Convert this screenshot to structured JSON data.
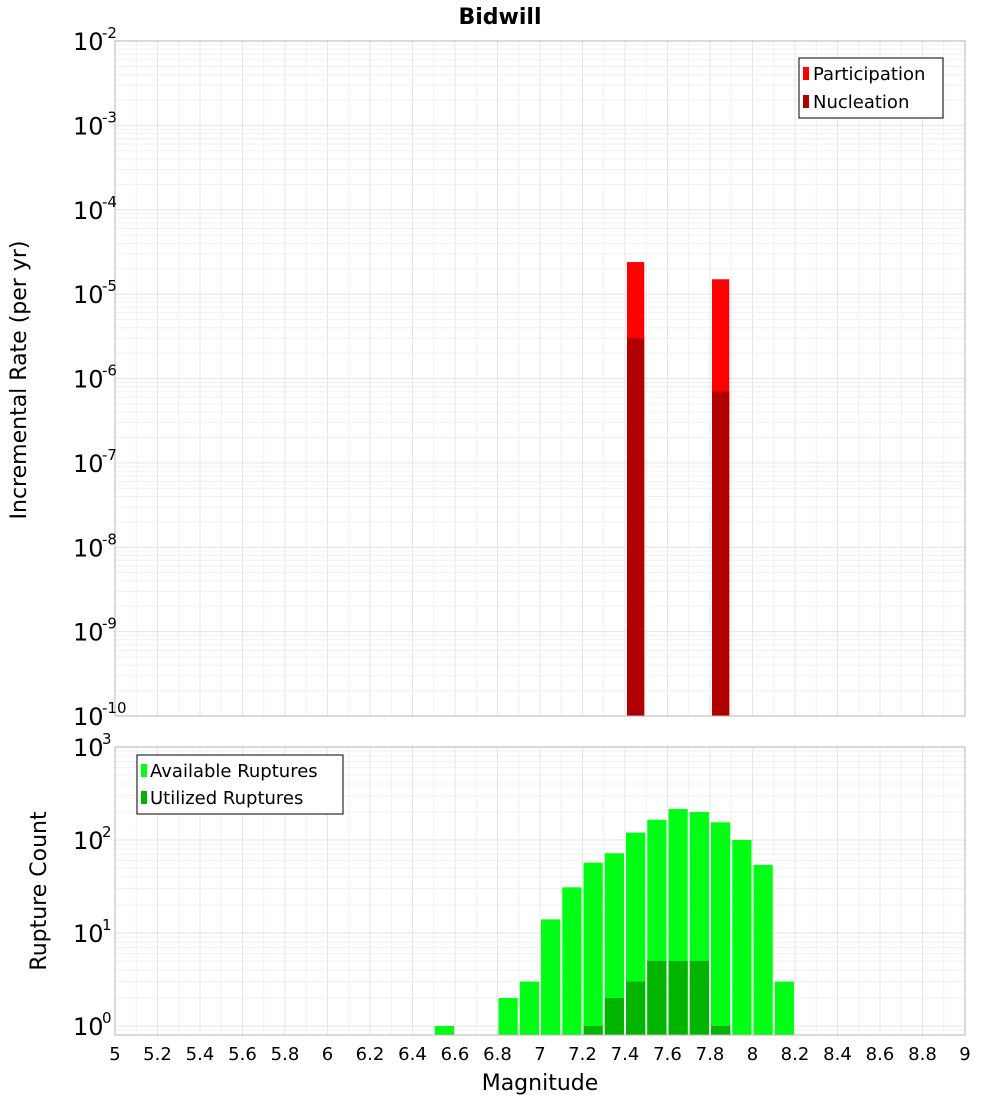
{
  "chart_data": [
    {
      "type": "bar",
      "title": "Bidwill",
      "ylabel": "Incremental Rate (per yr)",
      "xlabel": "",
      "yscale": "log",
      "ylim": [
        1e-10,
        0.01
      ],
      "xlim": [
        5,
        9
      ],
      "grid": true,
      "legend_position": "top-right",
      "y_ticks": [
        {
          "base": "10",
          "exp": "-10",
          "value": 1e-10
        },
        {
          "base": "10",
          "exp": "-9",
          "value": 1e-09
        },
        {
          "base": "10",
          "exp": "-8",
          "value": 1e-08
        },
        {
          "base": "10",
          "exp": "-7",
          "value": 1e-07
        },
        {
          "base": "10",
          "exp": "-6",
          "value": 1e-06
        },
        {
          "base": "10",
          "exp": "-5",
          "value": 1e-05
        },
        {
          "base": "10",
          "exp": "-4",
          "value": 0.0001
        },
        {
          "base": "10",
          "exp": "-3",
          "value": 0.001
        },
        {
          "base": "10",
          "exp": "-2",
          "value": 0.01
        }
      ],
      "series": [
        {
          "name": "Participation",
          "color": "#ff0000",
          "x": [
            7.45,
            7.85
          ],
          "values": [
            2.4e-05,
            1.5e-05
          ]
        },
        {
          "name": "Nucleation",
          "color": "#b00000",
          "x": [
            7.45,
            7.85
          ],
          "values": [
            3e-06,
            7e-07
          ]
        }
      ]
    },
    {
      "type": "bar",
      "title": "",
      "ylabel": "Rupture Count",
      "xlabel": "Magnitude",
      "yscale": "log",
      "ylim": [
        0.8,
        1000
      ],
      "xlim": [
        5,
        9
      ],
      "grid": true,
      "legend_position": "top-left",
      "y_ticks": [
        {
          "base": "10",
          "exp": "0",
          "value": 1
        },
        {
          "base": "10",
          "exp": "1",
          "value": 10
        },
        {
          "base": "10",
          "exp": "2",
          "value": 100
        },
        {
          "base": "10",
          "exp": "3",
          "value": 1000
        }
      ],
      "x_ticks": [
        "5",
        "5.2",
        "5.4",
        "5.6",
        "5.8",
        "6",
        "6.2",
        "6.4",
        "6.6",
        "6.8",
        "7",
        "7.2",
        "7.4",
        "7.6",
        "7.8",
        "8",
        "8.2",
        "8.4",
        "8.6",
        "8.8",
        "9"
      ],
      "series": [
        {
          "name": "Available Ruptures",
          "color": "#00ff14",
          "x": [
            6.55,
            6.85,
            6.95,
            7.05,
            7.15,
            7.25,
            7.35,
            7.45,
            7.55,
            7.65,
            7.75,
            7.85,
            7.95,
            8.05,
            8.15
          ],
          "values": [
            1,
            2,
            3,
            14,
            31,
            57,
            72,
            120,
            165,
            215,
            200,
            155,
            100,
            54,
            3
          ]
        },
        {
          "name": "Utilized Ruptures",
          "color": "#00b400",
          "x": [
            7.25,
            7.35,
            7.45,
            7.55,
            7.65,
            7.75,
            7.85
          ],
          "values": [
            1,
            2,
            3,
            5,
            5,
            5,
            1
          ]
        }
      ]
    }
  ]
}
